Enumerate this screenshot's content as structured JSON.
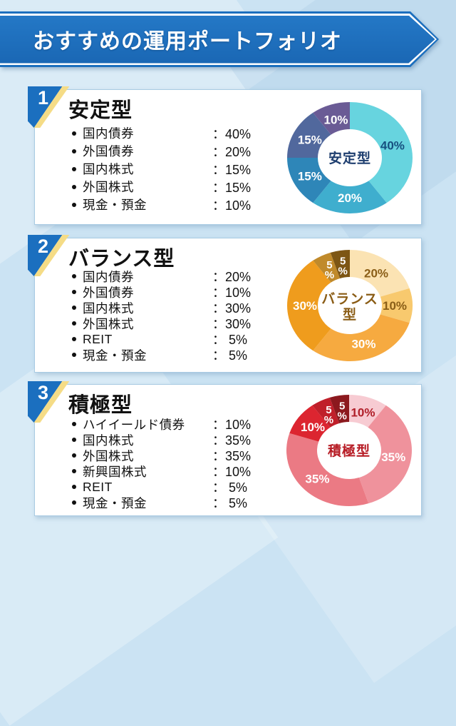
{
  "banner": {
    "title": "おすすめの運用ポートフォリオ"
  },
  "colors": {
    "background": "#CBE3F3",
    "banner_blue": "#1C6FBE",
    "badge_blue": "#1B6FBF",
    "badge_yellow": "#F5DC86",
    "card_border": "#A9CBE3"
  },
  "chart_data": [
    {
      "type": "pie",
      "variant": "donut",
      "badge": "1",
      "title": "安定型",
      "center_label_lines": [
        "安定型"
      ],
      "center_color": "#1E3E6F",
      "start_angle": "top",
      "direction": "clockwise",
      "slices": [
        {
          "name": "国内債券",
          "pct": 40,
          "display": "40%",
          "color": "#67D4DF",
          "label_color": "#16507F"
        },
        {
          "name": "外国債券",
          "pct": 20,
          "display": "20%",
          "color": "#3FAECE",
          "label_color": "#FFFFFF"
        },
        {
          "name": "国内株式",
          "pct": 15,
          "display": "15%",
          "color": "#2E86B8",
          "label_color": "#FFFFFF"
        },
        {
          "name": "外国株式",
          "pct": 15,
          "display": "15%",
          "color": "#51689D",
          "label_color": "#FFFFFF"
        },
        {
          "name": "現金・預金",
          "pct": 10,
          "display": "10%",
          "color": "#6A5B95",
          "label_color": "#FFFFFF"
        }
      ]
    },
    {
      "type": "pie",
      "variant": "donut",
      "badge": "2",
      "title": "バランス型",
      "center_label_lines": [
        "バランス",
        "型"
      ],
      "center_color": "#8A5C15",
      "start_angle": "top",
      "direction": "clockwise",
      "slices": [
        {
          "name": "国内債券",
          "pct": 20,
          "display": "20%",
          "color": "#FBE3B3",
          "label_color": "#8A5E17"
        },
        {
          "name": "外国債券",
          "pct": 10,
          "display": "10%",
          "color": "#F8C96E",
          "label_color": "#8A5E17"
        },
        {
          "name": "国内株式",
          "pct": 30,
          "display": "30%",
          "color": "#F6AA40",
          "label_color": "#FFFFFF"
        },
        {
          "name": "外国株式",
          "pct": 30,
          "display": "30%",
          "color": "#EF9C1D",
          "label_color": "#FFFFFF"
        },
        {
          "name": "REIT",
          "pct": 5,
          "display": " 5%",
          "color": "#C08A2B",
          "label_color": "#FFFFFF"
        },
        {
          "name": "現金・預金",
          "pct": 5,
          "display": " 5%",
          "color": "#7D5614",
          "label_color": "#FFFFFF"
        }
      ]
    },
    {
      "type": "pie",
      "variant": "donut",
      "badge": "3",
      "title": "積極型",
      "center_label_lines": [
        "積極型"
      ],
      "center_color": "#B71C25",
      "start_angle": "top",
      "direction": "clockwise",
      "slices": [
        {
          "name": "ハイイールド債券",
          "pct": 10,
          "display": "10%",
          "color": "#F7CBD2",
          "label_color": "#B01E28"
        },
        {
          "name": "国内株式",
          "pct": 35,
          "display": "35%",
          "color": "#EF929C",
          "label_color": "#FFFFFF"
        },
        {
          "name": "外国株式",
          "pct": 35,
          "display": "35%",
          "color": "#EB7A84",
          "label_color": "#FFFFFF"
        },
        {
          "name": "新興国株式",
          "pct": 10,
          "display": "10%",
          "color": "#DC2530",
          "label_color": "#FFFFFF"
        },
        {
          "name": "REIT",
          "pct": 5,
          "display": " 5%",
          "color": "#C01F2A",
          "label_color": "#FFFFFF"
        },
        {
          "name": "現金・預金",
          "pct": 5,
          "display": " 5%",
          "color": "#8C191E",
          "label_color": "#FFFFFF"
        }
      ]
    }
  ]
}
